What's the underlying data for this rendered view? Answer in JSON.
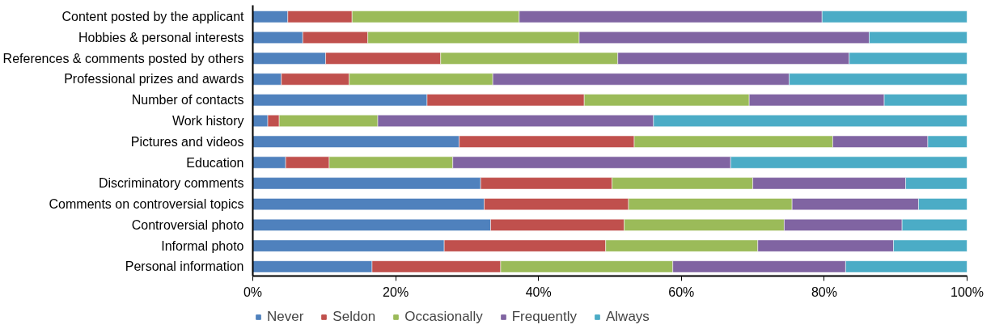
{
  "chart_data": {
    "type": "bar",
    "orientation": "horizontal",
    "stacked": true,
    "categories": [
      "Content posted by the applicant",
      "Hobbies & personal interests",
      "References & comments posted by others",
      "Professional prizes and awards",
      "Number of contacts",
      "Work history",
      "Pictures and videos",
      "Education",
      "Discriminatory comments",
      "Comments on controversial topics",
      "Controversial photo",
      "Informal photo",
      "Personal information"
    ],
    "series": [
      {
        "name": "Never",
        "color": "#4f81bd",
        "values": [
          4.9,
          7.0,
          10.2,
          4.0,
          24.4,
          2.1,
          28.9,
          4.6,
          31.9,
          32.4,
          33.3,
          26.8,
          16.7
        ]
      },
      {
        "name": "Seldon",
        "color": "#c0504d",
        "values": [
          9.0,
          9.1,
          16.1,
          9.5,
          22.0,
          1.6,
          24.5,
          6.1,
          18.4,
          20.2,
          18.7,
          22.6,
          18.0
        ]
      },
      {
        "name": "Occasionally",
        "color": "#9bbb59",
        "values": [
          23.4,
          29.6,
          24.8,
          20.1,
          23.1,
          13.8,
          27.8,
          17.3,
          19.7,
          22.9,
          22.4,
          21.3,
          24.1
        ]
      },
      {
        "name": "Frequently",
        "color": "#8064a2",
        "values": [
          42.4,
          40.6,
          32.4,
          41.5,
          18.9,
          38.6,
          13.3,
          38.9,
          21.4,
          17.7,
          16.5,
          19.0,
          24.2
        ]
      },
      {
        "name": "Always",
        "color": "#4bacc6",
        "values": [
          20.3,
          13.7,
          16.5,
          24.9,
          11.6,
          43.9,
          5.5,
          33.1,
          8.6,
          6.8,
          9.1,
          10.3,
          17.0
        ]
      }
    ],
    "xlim": [
      0,
      100
    ],
    "xticks": [
      {
        "value": 0,
        "label": "0%"
      },
      {
        "value": 20,
        "label": "20%"
      },
      {
        "value": 40,
        "label": "40%"
      },
      {
        "value": 60,
        "label": "60%"
      },
      {
        "value": 80,
        "label": "80%"
      },
      {
        "value": 100,
        "label": "100%"
      }
    ],
    "legend": "bottom",
    "grid": false
  }
}
